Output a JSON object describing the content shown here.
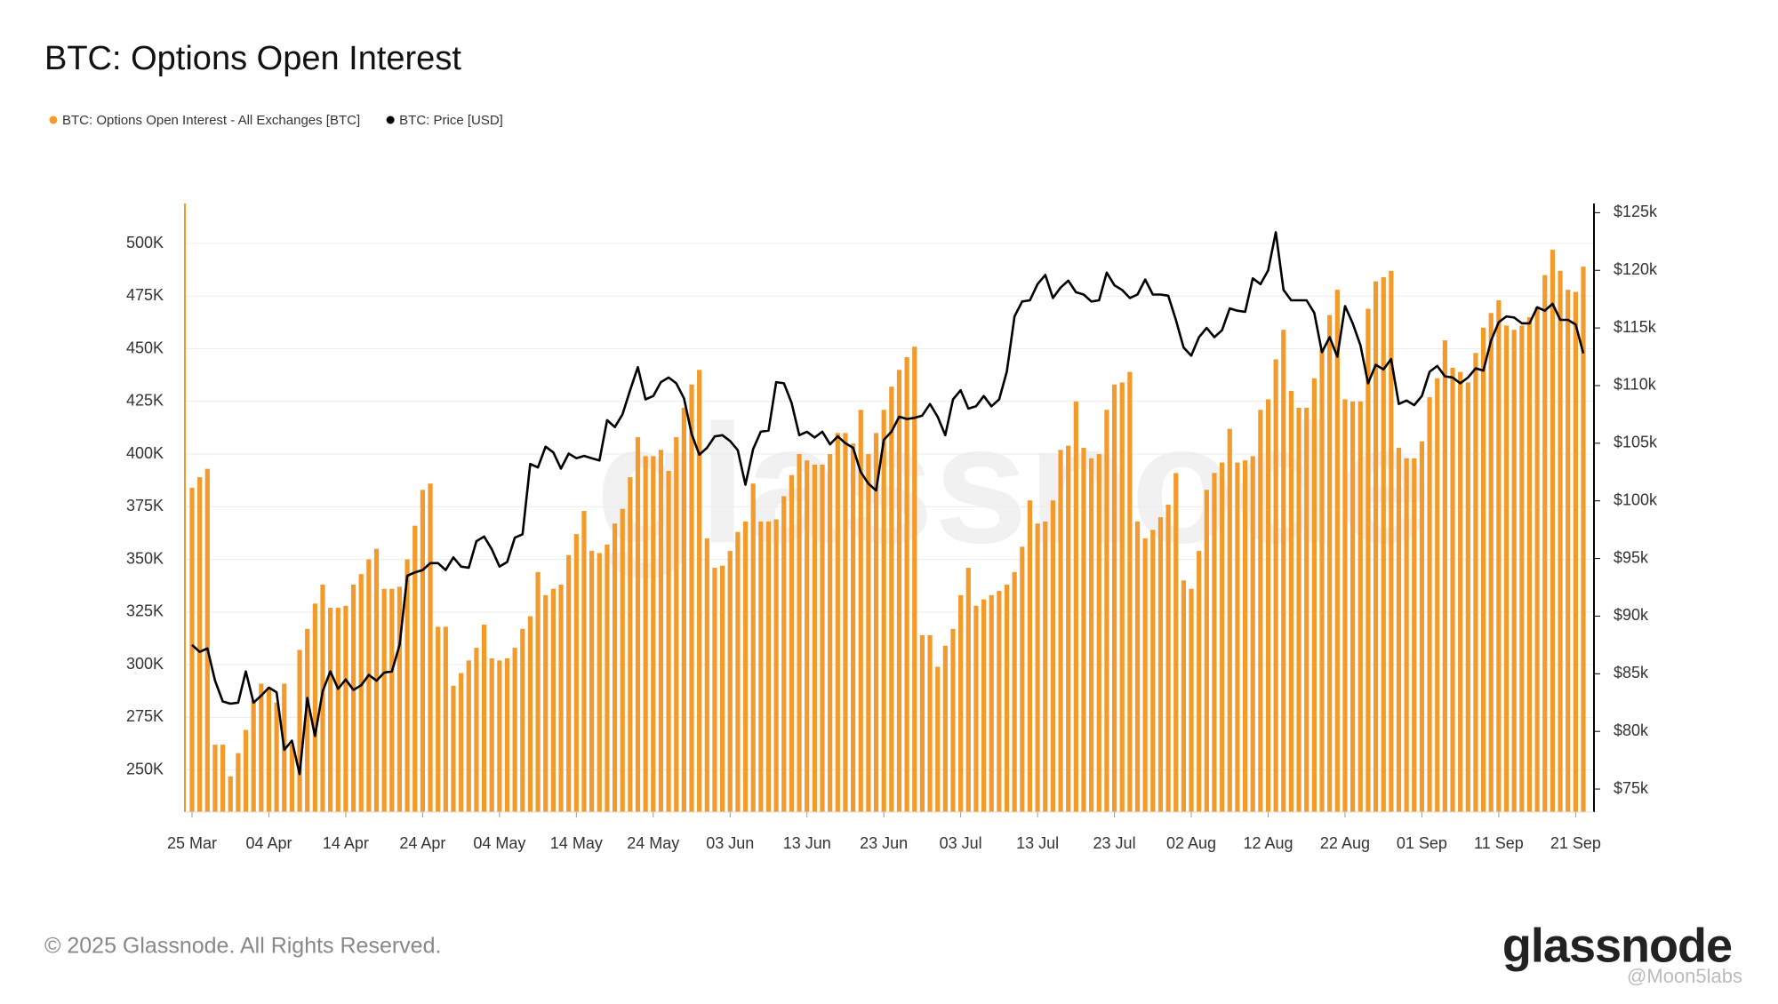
{
  "chart_data": {
    "type": "bar",
    "title": "BTC: Options Open Interest",
    "footer": "© 2025 Glassnode. All Rights Reserved.",
    "logo": "glassnode",
    "watermark": "@Moon5labs",
    "grid": true,
    "categories": [
      "25 Mar",
      null,
      null,
      null,
      null,
      null,
      null,
      null,
      null,
      null,
      "04 Apr",
      null,
      null,
      null,
      null,
      null,
      null,
      null,
      null,
      null,
      "14 Apr",
      null,
      null,
      null,
      null,
      null,
      null,
      null,
      null,
      null,
      "24 Apr",
      null,
      null,
      null,
      null,
      null,
      null,
      null,
      null,
      null,
      "04 May",
      null,
      null,
      null,
      null,
      null,
      null,
      null,
      null,
      null,
      "14 May",
      null,
      null,
      null,
      null,
      null,
      null,
      null,
      null,
      null,
      "24 May",
      null,
      null,
      null,
      null,
      null,
      null,
      null,
      null,
      null,
      "03 Jun",
      null,
      null,
      null,
      null,
      null,
      null,
      null,
      null,
      null,
      "13 Jun",
      null,
      null,
      null,
      null,
      null,
      null,
      null,
      null,
      null,
      "23 Jun",
      null,
      null,
      null,
      null,
      null,
      null,
      null,
      null,
      null,
      "03 Jul",
      null,
      null,
      null,
      null,
      null,
      null,
      null,
      null,
      null,
      "13 Jul",
      null,
      null,
      null,
      null,
      null,
      null,
      null,
      null,
      null,
      "23 Jul",
      null,
      null,
      null,
      null,
      null,
      null,
      null,
      null,
      null,
      "02 Aug",
      null,
      null,
      null,
      null,
      null,
      null,
      null,
      null,
      null,
      "12 Aug",
      null,
      null,
      null,
      null,
      null,
      null,
      null,
      null,
      null,
      "22 Aug",
      null,
      null,
      null,
      null,
      null,
      null,
      null,
      null,
      null,
      "01 Sep",
      null,
      null,
      null,
      null,
      null,
      null,
      null,
      null,
      null,
      "11 Sep",
      null,
      null,
      null,
      null,
      null,
      null,
      null,
      null,
      null,
      "21 Sep",
      null
    ],
    "ylim": [
      230000,
      519000
    ],
    "yticks": [
      {
        "value": 250000,
        "label": "250K"
      },
      {
        "value": 275000,
        "label": "275K"
      },
      {
        "value": 300000,
        "label": "300K"
      },
      {
        "value": 325000,
        "label": "325K"
      },
      {
        "value": 350000,
        "label": "350K"
      },
      {
        "value": 375000,
        "label": "375K"
      },
      {
        "value": 400000,
        "label": "400K"
      },
      {
        "value": 425000,
        "label": "425K"
      },
      {
        "value": 450000,
        "label": "450K"
      },
      {
        "value": 475000,
        "label": "475K"
      },
      {
        "value": 500000,
        "label": "500K"
      }
    ],
    "y2lim": [
      73000,
      125800
    ],
    "y2ticks": [
      {
        "value": 75000,
        "label": "$75k"
      },
      {
        "value": 80000,
        "label": "$80k"
      },
      {
        "value": 85000,
        "label": "$85k"
      },
      {
        "value": 90000,
        "label": "$90k"
      },
      {
        "value": 95000,
        "label": "$95k"
      },
      {
        "value": 100000,
        "label": "$100k"
      },
      {
        "value": 105000,
        "label": "$105k"
      },
      {
        "value": 110000,
        "label": "$110k"
      },
      {
        "value": 115000,
        "label": "$115k"
      },
      {
        "value": 120000,
        "label": "$120k"
      },
      {
        "value": 125000,
        "label": "$125k"
      }
    ],
    "series": [
      {
        "name": "BTC: Options Open Interest - All Exchanges [BTC]",
        "type": "bar",
        "color": "#f39a2b",
        "values": [
          384000,
          389000,
          393000,
          262000,
          262000,
          247000,
          258000,
          269000,
          283000,
          291000,
          289000,
          282000,
          291000,
          262000,
          307000,
          317000,
          329000,
          338000,
          327000,
          327000,
          328000,
          338000,
          343000,
          350000,
          355000,
          336000,
          336000,
          337000,
          350000,
          366000,
          383000,
          386000,
          318000,
          318000,
          290000,
          296000,
          302000,
          308000,
          319000,
          303000,
          302000,
          303000,
          308000,
          317000,
          323000,
          344000,
          333000,
          336000,
          338000,
          352000,
          362000,
          373000,
          354000,
          353000,
          357000,
          367000,
          374000,
          389000,
          408000,
          399000,
          399000,
          402000,
          392000,
          408000,
          422000,
          433000,
          440000,
          360000,
          346000,
          347000,
          354000,
          363000,
          368000,
          386000,
          368000,
          368000,
          369000,
          380000,
          390000,
          400000,
          397000,
          395000,
          395000,
          400000,
          410000,
          410000,
          405000,
          421000,
          400000,
          410000,
          421000,
          432000,
          440000,
          446000,
          451000,
          314000,
          314000,
          299000,
          309000,
          317000,
          333000,
          346000,
          328000,
          331000,
          333000,
          335000,
          338000,
          344000,
          356000,
          378000,
          367000,
          368000,
          378000,
          402000,
          404000,
          425000,
          403000,
          398000,
          400000,
          421000,
          433000,
          434000,
          439000,
          368000,
          360000,
          364000,
          370000,
          376000,
          391000,
          340000,
          336000,
          354000,
          383000,
          391000,
          396000,
          412000,
          396000,
          397000,
          399000,
          421000,
          426000,
          445000,
          459000,
          430000,
          422000,
          422000,
          436000,
          450000,
          466000,
          478000,
          426000,
          425000,
          425000,
          469000,
          482000,
          484000,
          487000,
          403000,
          398000,
          398000,
          406000,
          427000,
          436000,
          454000,
          441000,
          439000,
          434000,
          448000,
          460000,
          467000,
          473000,
          461000,
          459000,
          461000,
          465000,
          470000,
          485000,
          497000,
          487000,
          478000,
          477000,
          489000
        ]
      },
      {
        "name": "BTC: Price [USD]",
        "type": "line",
        "axis": "y2",
        "color": "#000000",
        "values": [
          87500,
          86900,
          87200,
          84400,
          82600,
          82400,
          82500,
          85200,
          82500,
          83100,
          83800,
          83400,
          78400,
          79200,
          76300,
          82900,
          79600,
          83500,
          85200,
          83700,
          84500,
          83600,
          84000,
          84900,
          84400,
          85100,
          85200,
          87500,
          93500,
          93800,
          94000,
          94600,
          94600,
          94000,
          95100,
          94300,
          94200,
          96500,
          96900,
          95800,
          94300,
          94700,
          96800,
          97100,
          103200,
          102900,
          104700,
          104200,
          102800,
          104100,
          103700,
          103900,
          103700,
          103500,
          107000,
          106400,
          107500,
          109600,
          111600,
          108800,
          109100,
          110300,
          110700,
          110200,
          108900,
          105800,
          104000,
          104600,
          105600,
          105700,
          105200,
          104400,
          101400,
          104500,
          106000,
          106100,
          110300,
          110200,
          108500,
          105700,
          106000,
          105500,
          106000,
          104900,
          105600,
          105000,
          104600,
          102500,
          101500,
          100900,
          105300,
          106000,
          107300,
          107100,
          107200,
          107400,
          108400,
          107300,
          105700,
          108800,
          109600,
          108000,
          108200,
          109100,
          108200,
          108800,
          111200,
          116000,
          117300,
          117400,
          118800,
          119600,
          117600,
          118500,
          119100,
          118100,
          117900,
          117300,
          117400,
          119800,
          118700,
          118300,
          117600,
          117900,
          119200,
          117900,
          117900,
          117800,
          115700,
          113300,
          112600,
          114200,
          115000,
          114200,
          114800,
          116700,
          116500,
          116400,
          119300,
          118800,
          120000,
          123300,
          118300,
          117400,
          117400,
          117400,
          116300,
          112900,
          114200,
          112500,
          116900,
          115400,
          113500,
          110200,
          111800,
          111400,
          112300,
          108400,
          108700,
          108300,
          109100,
          111200,
          111700,
          110800,
          110700,
          110200,
          110700,
          111500,
          111300,
          113900,
          115500,
          116000,
          115900,
          115400,
          115400,
          116800,
          116500,
          117100,
          115700,
          115700,
          115300,
          112800
        ]
      }
    ]
  }
}
